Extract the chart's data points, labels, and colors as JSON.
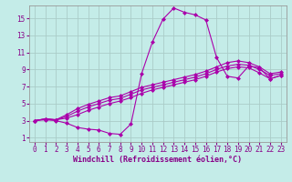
{
  "background_color": "#c4ece8",
  "grid_color": "#aaccc8",
  "line_color": "#aa00aa",
  "marker": "D",
  "markersize": 2,
  "linewidth": 0.8,
  "xlabel": "Windchill (Refroidissement éolien,°C)",
  "xlabel_fontsize": 6,
  "xlabel_color": "#880088",
  "tick_fontsize": 5.5,
  "tick_color": "#880088",
  "xlim": [
    -0.5,
    23.5
  ],
  "ylim": [
    0.5,
    16.5
  ],
  "yticks": [
    1,
    3,
    5,
    7,
    9,
    11,
    13,
    15
  ],
  "xticks": [
    0,
    1,
    2,
    3,
    4,
    5,
    6,
    7,
    8,
    9,
    10,
    11,
    12,
    13,
    14,
    15,
    16,
    17,
    18,
    19,
    20,
    21,
    22,
    23
  ],
  "curves": [
    [
      3.0,
      3.1,
      3.0,
      2.7,
      2.2,
      2.0,
      1.9,
      1.5,
      1.4,
      2.6,
      8.5,
      12.2,
      14.9,
      16.2,
      15.7,
      15.4,
      14.8,
      10.4,
      8.2,
      8.0,
      9.4,
      9.2,
      7.9,
      8.3
    ],
    [
      3.0,
      3.2,
      3.1,
      3.3,
      3.7,
      4.2,
      4.6,
      5.0,
      5.3,
      5.7,
      6.2,
      6.6,
      6.9,
      7.2,
      7.5,
      7.8,
      8.2,
      8.7,
      9.1,
      9.3,
      9.2,
      8.6,
      7.9,
      8.3
    ],
    [
      3.0,
      3.2,
      3.1,
      3.5,
      4.1,
      4.6,
      5.0,
      5.4,
      5.6,
      6.1,
      6.6,
      6.9,
      7.2,
      7.5,
      7.8,
      8.1,
      8.5,
      9.0,
      9.4,
      9.6,
      9.5,
      9.0,
      8.3,
      8.5
    ],
    [
      3.0,
      3.2,
      3.1,
      3.7,
      4.4,
      4.9,
      5.3,
      5.7,
      5.9,
      6.4,
      6.9,
      7.2,
      7.5,
      7.8,
      8.1,
      8.4,
      8.8,
      9.3,
      9.8,
      10.0,
      9.8,
      9.3,
      8.5,
      8.7
    ]
  ]
}
